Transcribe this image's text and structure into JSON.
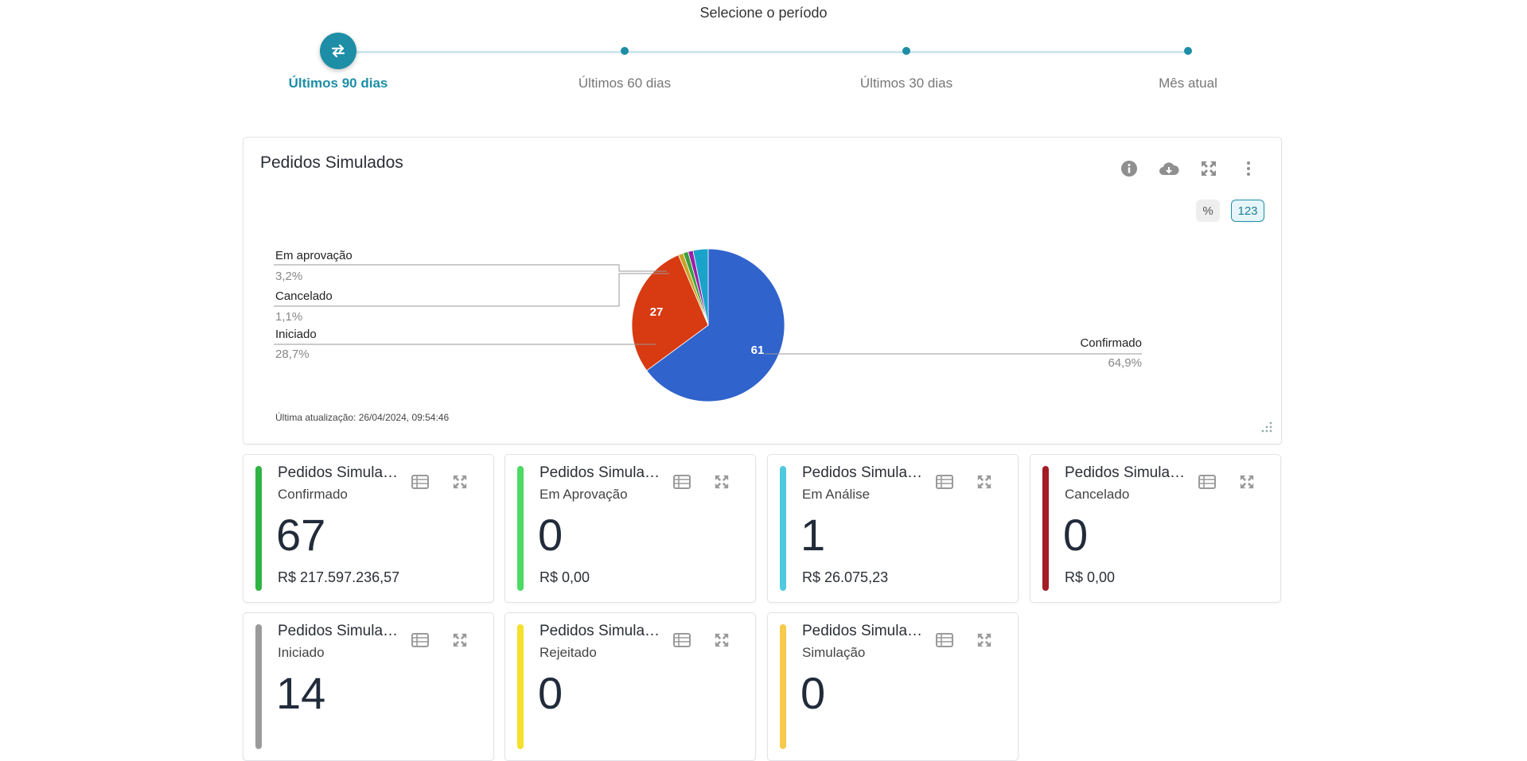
{
  "period": {
    "title": "Selecione o período",
    "steps": [
      {
        "label": "Últimos 90 dias",
        "active": true
      },
      {
        "label": "Últimos 60 dias",
        "active": false
      },
      {
        "label": "Últimos 30 dias",
        "active": false
      },
      {
        "label": "Mês atual",
        "active": false
      }
    ]
  },
  "main_card": {
    "title": "Pedidos Simulados",
    "toggle_percent": "%",
    "toggle_number": "123",
    "last_update": "Última atualização: 26/04/2024, 09:54:46",
    "icons": [
      "info-icon",
      "cloud-download-icon",
      "expand-icon",
      "more-vertical-icon"
    ]
  },
  "chart_data": {
    "type": "pie",
    "slices": [
      {
        "name": "Confirmado",
        "value": 61,
        "percent": "64,9%",
        "color": "#3063cc",
        "value_label": "61"
      },
      {
        "name": "Iniciado",
        "value": 27,
        "percent": "28,7%",
        "color": "#d83a12",
        "value_label": "27"
      },
      {
        "name": "Cancelado",
        "value": 1,
        "percent": "1,1%",
        "color": "#c9a227"
      },
      {
        "name": "",
        "value": 1,
        "color": "#3aa23c"
      },
      {
        "name": "",
        "value": 1,
        "color": "#9c1fa8"
      },
      {
        "name": "Em aprovação",
        "value": 3,
        "percent": "3,2%",
        "color": "#1aa3c9"
      }
    ]
  },
  "cards": [
    {
      "title": "Pedidos Simulados",
      "subtitle": "Confirmado",
      "value": "67",
      "money": "R$ 217.597.236,57",
      "color": "#2fb344"
    },
    {
      "title": "Pedidos Simulados",
      "subtitle": "Em Aprovação",
      "value": "0",
      "money": "R$ 0,00",
      "color": "#4cd964"
    },
    {
      "title": "Pedidos Simulados",
      "subtitle": "Em Análise",
      "value": "1",
      "money": "R$ 26.075,23",
      "color": "#4fc9e0"
    },
    {
      "title": "Pedidos Simulados",
      "subtitle": "Cancelado",
      "value": "0",
      "money": "R$ 0,00",
      "color": "#a31d24"
    },
    {
      "title": "Pedidos Simulados",
      "subtitle": "Iniciado",
      "value": "14",
      "money": "",
      "color": "#9b9b9b"
    },
    {
      "title": "Pedidos Simulados",
      "subtitle": "Rejeitado",
      "value": "0",
      "money": "",
      "color": "#f4e12a"
    },
    {
      "title": "Pedidos Simulados",
      "subtitle": "Simulação",
      "value": "0",
      "money": "",
      "color": "#f8c94a"
    }
  ]
}
